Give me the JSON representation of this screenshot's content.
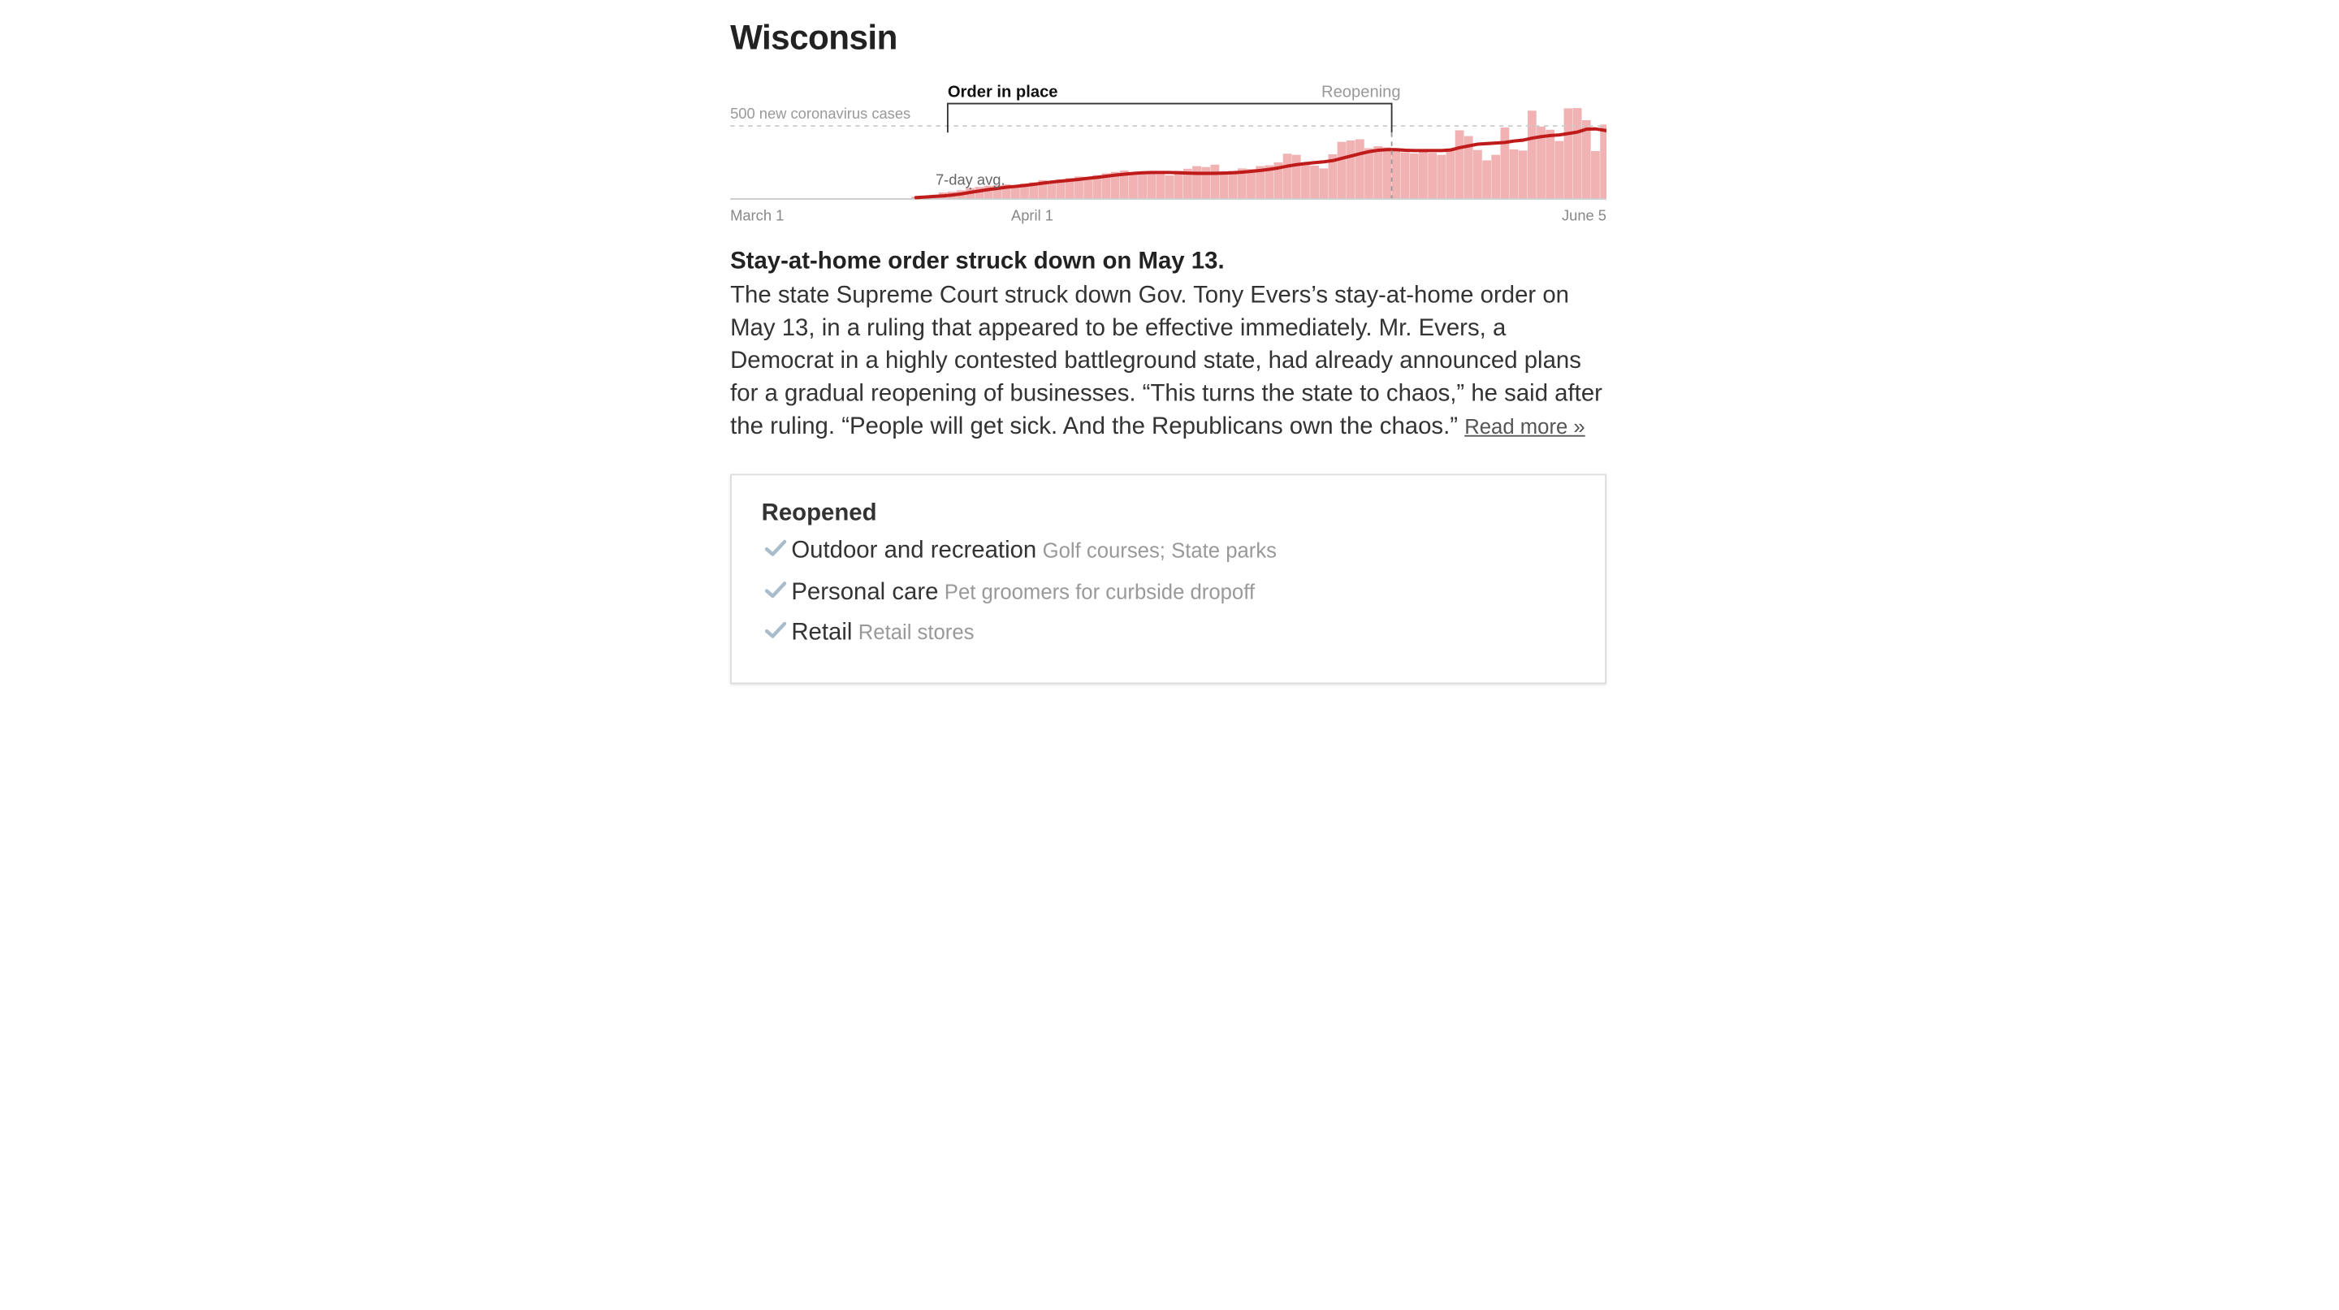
{
  "state": {
    "title": "Wisconsin"
  },
  "chart_data": {
    "type": "bar",
    "title": "",
    "series": [
      {
        "name": "new coronavirus cases",
        "kind": "bar",
        "color": "#f0b2b2"
      },
      {
        "name": "7-day avg.",
        "kind": "line",
        "color": "#c01b1b"
      }
    ],
    "x_tick_labels": [
      "March 1",
      "April 1",
      "June 5"
    ],
    "x_range": [
      "2020-03-01",
      "2020-06-05"
    ],
    "y_range": [
      0,
      650
    ],
    "reference_line": {
      "value": 500,
      "label": "500 new coronavirus cases"
    },
    "avg_label": "7-day avg.",
    "periods": [
      {
        "label": "Order in place",
        "start": "2020-03-25",
        "end": "2020-05-13"
      },
      {
        "label": "Reopening",
        "start": "2020-05-13",
        "end": "2020-06-05"
      }
    ],
    "start_date": "2020-03-01",
    "daily_cases": [
      0,
      0,
      0,
      0,
      0,
      0,
      0,
      0,
      0,
      0,
      0,
      0,
      0,
      0,
      0,
      0,
      0,
      0,
      0,
      0,
      10,
      14,
      24,
      40,
      46,
      55,
      70,
      78,
      86,
      90,
      96,
      84,
      102,
      110,
      125,
      118,
      130,
      140,
      150,
      148,
      160,
      172,
      182,
      192,
      176,
      178,
      186,
      166,
      158,
      190,
      204,
      222,
      216,
      232,
      186,
      190,
      206,
      202,
      222,
      228,
      248,
      308,
      300,
      248,
      226,
      206,
      304,
      390,
      400,
      408,
      346,
      360,
      352,
      330,
      318,
      310,
      320,
      314,
      300,
      340,
      470,
      430,
      334,
      262,
      300,
      490,
      338,
      330,
      606,
      496,
      474,
      396,
      622,
      624,
      540,
      326,
      510,
      656
    ],
    "avg_7day": [
      0,
      0,
      0,
      0,
      0,
      0,
      0,
      0,
      0,
      0,
      0,
      0,
      0,
      0,
      0,
      0,
      0,
      0,
      0,
      0,
      4,
      8,
      12,
      16,
      22,
      30,
      40,
      50,
      60,
      68,
      76,
      82,
      88,
      96,
      104,
      112,
      118,
      124,
      130,
      138,
      144,
      152,
      160,
      166,
      172,
      176,
      178,
      178,
      178,
      176,
      174,
      172,
      172,
      172,
      174,
      176,
      180,
      186,
      192,
      200,
      210,
      222,
      232,
      240,
      246,
      252,
      260,
      276,
      292,
      308,
      322,
      332,
      336,
      336,
      332,
      330,
      330,
      330,
      330,
      334,
      350,
      362,
      374,
      378,
      382,
      386,
      396,
      402,
      416,
      426,
      434,
      438,
      448,
      458,
      478,
      480,
      470,
      456
    ]
  },
  "article": {
    "headline": "Stay-at-home order struck down on May 13.",
    "body": "The state Supreme Court struck down Gov. Tony Evers’s stay-at-home order on May 13, in a ruling that appeared to be effective immediately. Mr. Evers, a Democrat in a highly contested battleground state, had already announced plans for a gradual reopening of businesses. “This turns the state to chaos,” he said after the ruling. “People will get sick. And the Republicans own the chaos.”",
    "read_more": "Read more »"
  },
  "reopened": {
    "title": "Reopened",
    "check_icon": "checkmark-icon",
    "check_color": "#a8bccb",
    "items": [
      {
        "label": "Outdoor and recreation",
        "detail": "Golf courses; State parks"
      },
      {
        "label": "Personal care",
        "detail": "Pet groomers for curbside dropoff"
      },
      {
        "label": "Retail",
        "detail": "Retail stores"
      }
    ]
  }
}
